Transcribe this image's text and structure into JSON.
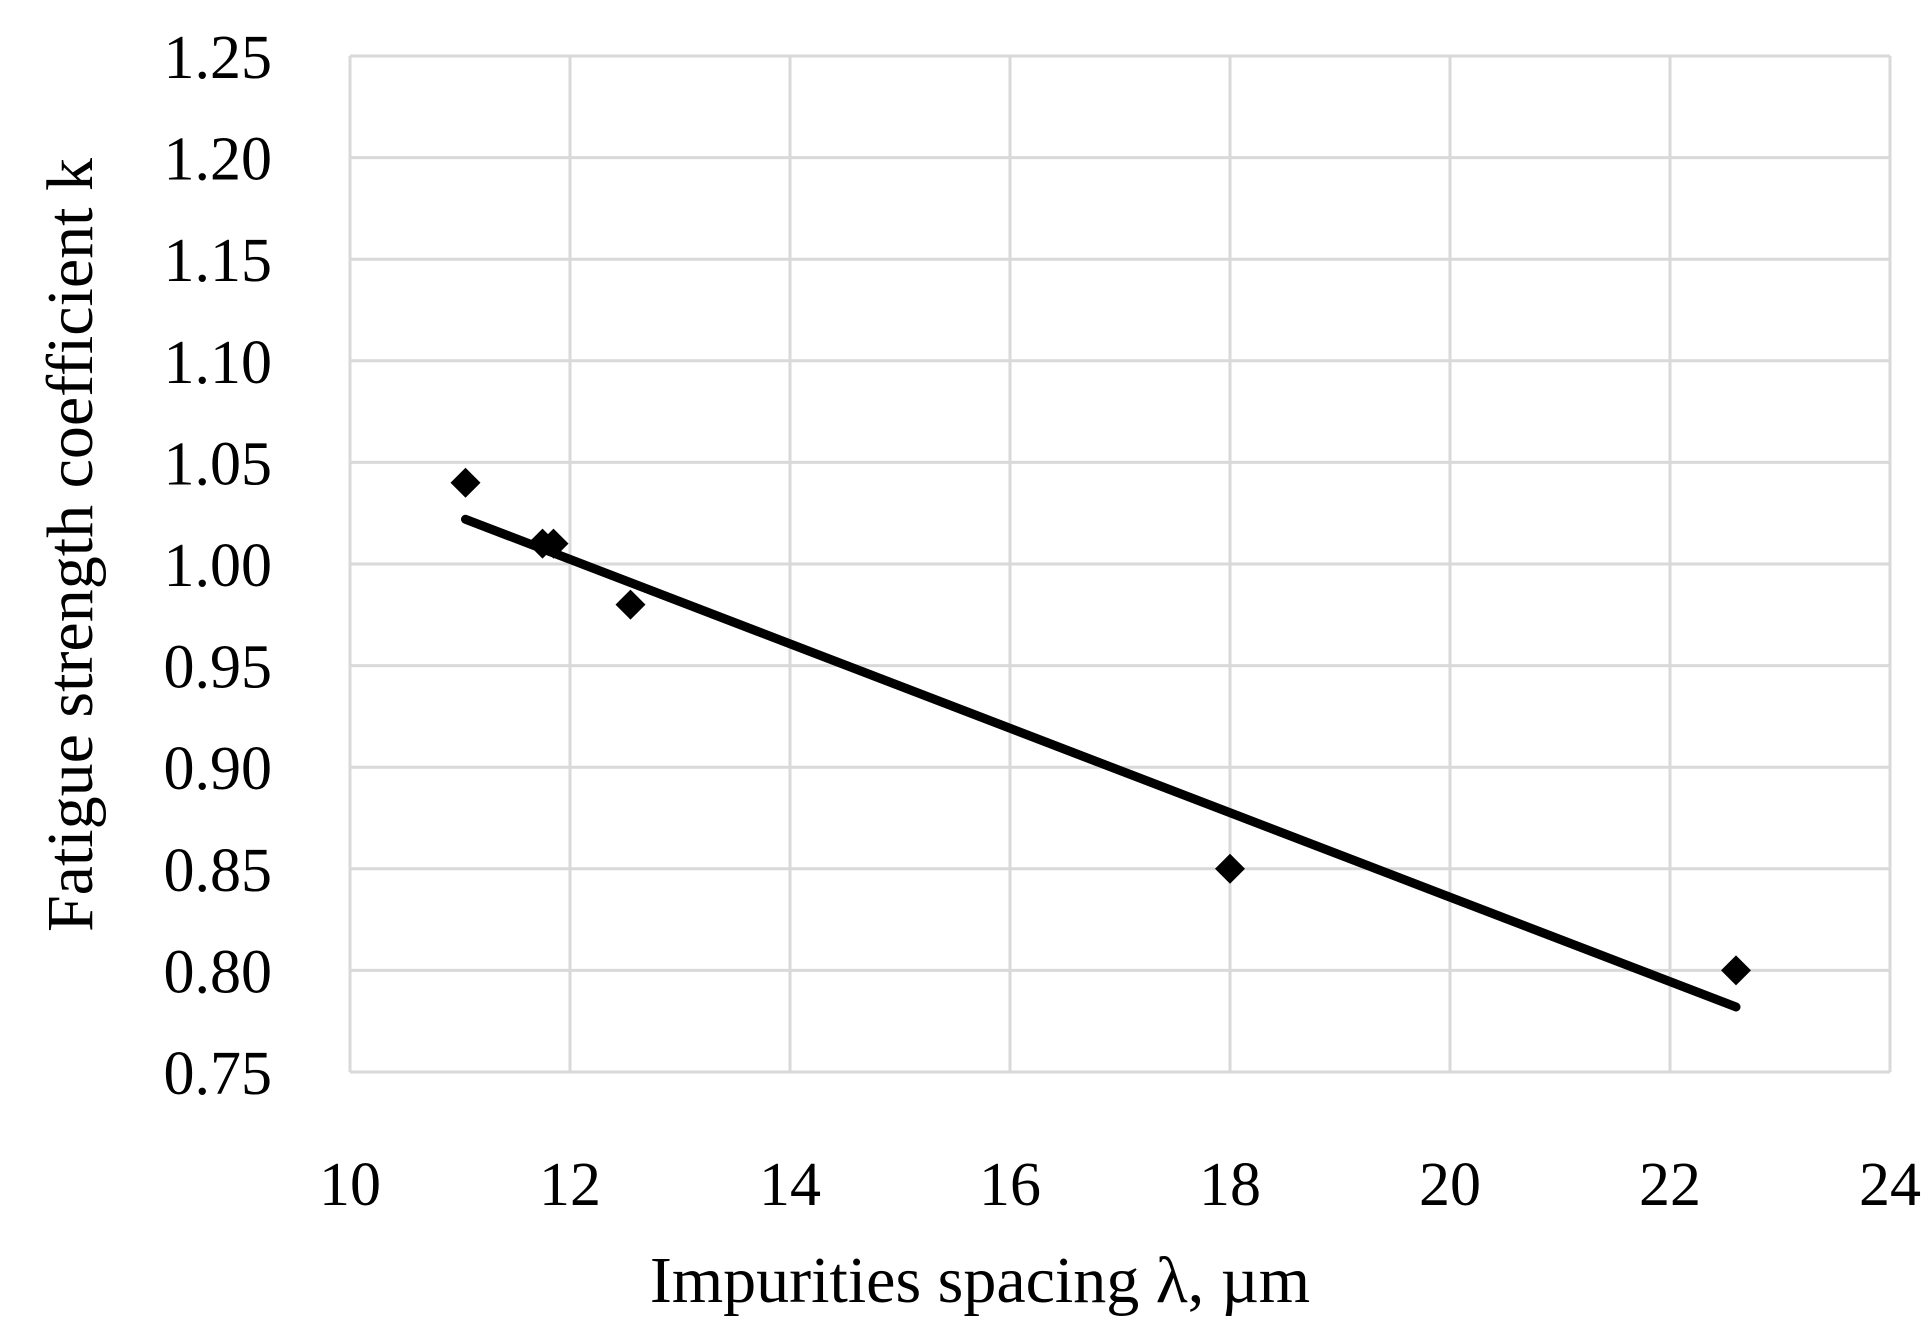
{
  "chart_data": {
    "type": "scatter",
    "title": "",
    "xlabel": "Impurities spacing λ, µm",
    "ylabel": "Fatigue strength coefficient k",
    "xlim": [
      10,
      24
    ],
    "ylim": [
      0.75,
      1.25
    ],
    "x_ticks": [
      "10",
      "12",
      "14",
      "16",
      "18",
      "20",
      "22",
      "24"
    ],
    "y_ticks": [
      "0.75",
      "0.80",
      "0.85",
      "0.90",
      "0.95",
      "1.00",
      "1.05",
      "1.10",
      "1.15",
      "1.20",
      "1.25"
    ],
    "grid": true,
    "legend": "none",
    "series": [
      {
        "marker": "diamond",
        "color": "#000000",
        "x": [
          11.05,
          11.75,
          11.85,
          12.55,
          18.0,
          22.6
        ],
        "y": [
          1.04,
          1.01,
          1.01,
          0.98,
          0.85,
          0.8
        ]
      }
    ],
    "trendline": {
      "type": "linear",
      "color": "#000000",
      "x": [
        11.05,
        22.6
      ],
      "y": [
        1.022,
        0.782
      ]
    },
    "colors": {
      "grid": "#d9d9d9",
      "marker": "#000000",
      "line": "#000000"
    }
  }
}
